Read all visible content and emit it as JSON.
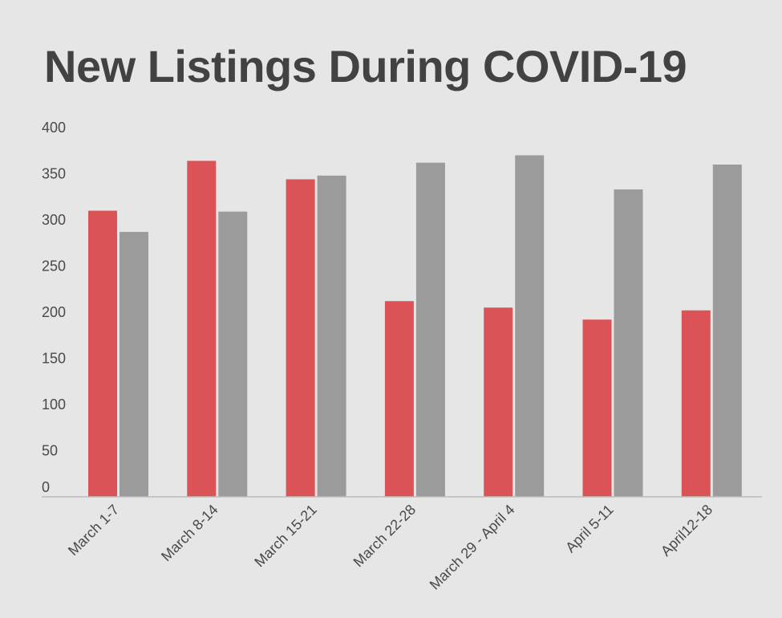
{
  "chart_data": {
    "type": "bar",
    "title": "New Listings During COVID-19",
    "categories": [
      "March 1-7",
      "March 8-14",
      "March 15-21",
      "March 22-28",
      "March 29 - April 4",
      "April 5-11",
      "April12-18"
    ],
    "series": [
      {
        "values": [
          310,
          364,
          344,
          212,
          205,
          192,
          202
        ]
      },
      {
        "values": [
          287,
          309,
          348,
          362,
          370,
          333,
          360
        ]
      }
    ],
    "ylim": [
      0,
      400
    ],
    "yticks": [
      0,
      50,
      100,
      150,
      200,
      250,
      300,
      350,
      400
    ],
    "grid": false,
    "legend": "none",
    "colors": [
      "#dc5357",
      "#9b9b9b"
    ]
  }
}
